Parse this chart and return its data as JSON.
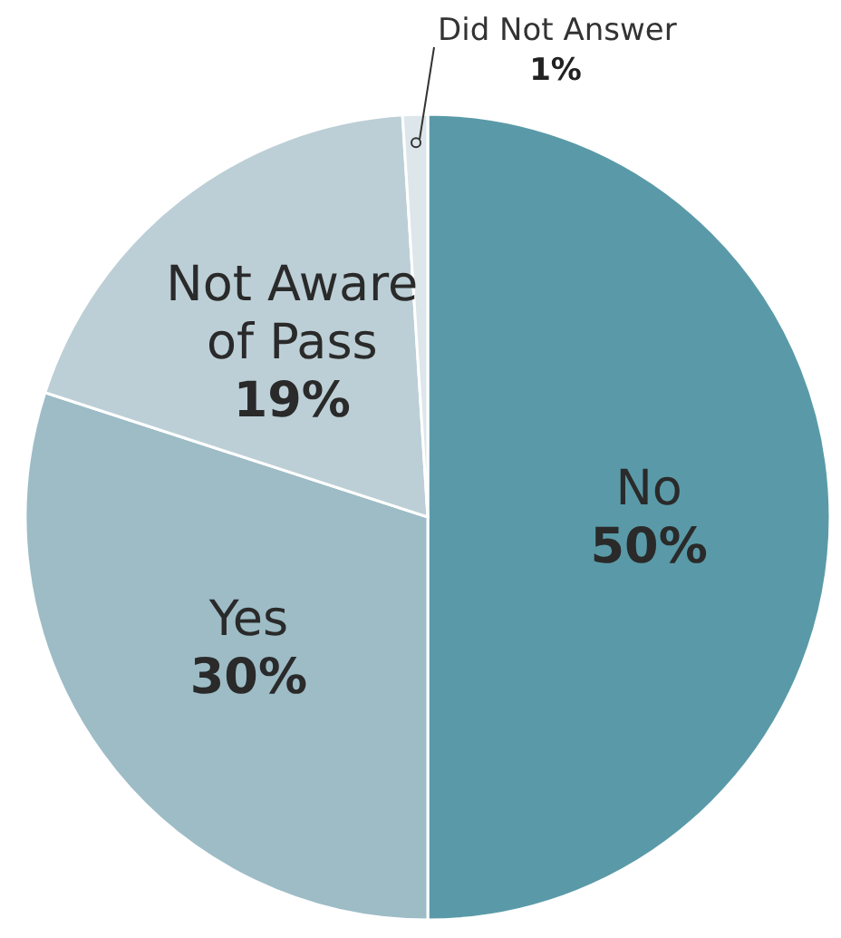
{
  "chart_data": {
    "type": "pie",
    "categories": [
      "No",
      "Yes",
      "Not Aware of Pass",
      "Did Not Answer"
    ],
    "values": [
      50,
      30,
      19,
      1
    ],
    "colors": [
      "#5a9aa8",
      "#9dbcc6",
      "#bccfd6",
      "#dde6ea"
    ],
    "value_labels": [
      "50%",
      "30%",
      "19%",
      "1%"
    ]
  }
}
